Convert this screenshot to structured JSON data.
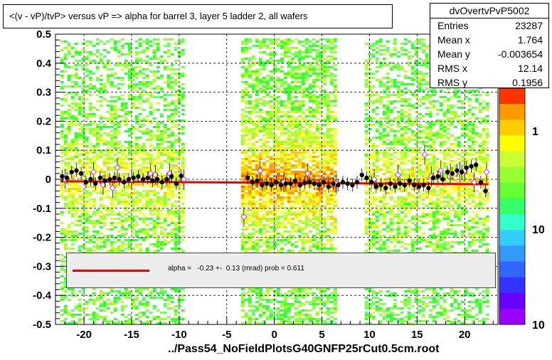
{
  "title": "<(v - vP)/tvP> versus   vP => alpha for barrel 3, layer 5 ladder 2, all wafers",
  "stats": {
    "name": "dvOvertvPvP5002",
    "rows": [
      {
        "key": "Entries",
        "value": "23287"
      },
      {
        "key": "Mean x",
        "value": "1.764"
      },
      {
        "key": "Mean y",
        "value": "-0.003654"
      },
      {
        "key": "RMS x",
        "value": "12.14"
      },
      {
        "key": "RMS y",
        "value": "0.1956"
      }
    ]
  },
  "fit_legend": "alpha =   -0.23 +-  0.13 (mrad) prob = 0.611",
  "filename": "../Pass54_NoFieldPlotsG40GNFP25rCut0.5cm.root",
  "colors": {
    "fit": "#ee0000",
    "profile": "#000000",
    "open_marker": "#cc33cc",
    "legend_bg": "#ececec"
  },
  "chart_data": {
    "type": "heatmap",
    "title": "<(v - vP)/tvP> versus   vP => alpha for barrel 3, layer 5 ladder 2, all wafers",
    "xlim": [
      -23,
      23.5
    ],
    "ylim": [
      -0.5,
      0.5
    ],
    "x_ticks": [
      -20,
      -15,
      -10,
      -5,
      0,
      5,
      10,
      15,
      20
    ],
    "y_ticks": [
      -0.5,
      -0.4,
      -0.3,
      -0.2,
      -0.1,
      0,
      0.1,
      0.2,
      0.3,
      0.4,
      0.5
    ],
    "grid": true,
    "z_scale": "log",
    "z_tick_labels": [
      "1",
      "10",
      "10"
    ],
    "occupied_x_ranges": [
      [
        -22.5,
        -9.5
      ],
      [
        -3.5,
        6.5
      ],
      [
        9.5,
        22.5
      ]
    ],
    "fit": {
      "type": "line",
      "slope": -0.00023,
      "intercept": -0.012
    },
    "profile_filled": {
      "x": [
        -22.3,
        -21.8,
        -21.3,
        -20.8,
        -20.3,
        -19.8,
        -19.3,
        -18.8,
        -18.3,
        -17.8,
        -17.3,
        -16.8,
        -16.3,
        -15.8,
        -15.3,
        -14.8,
        -14.3,
        -13.8,
        -13.3,
        -12.8,
        -12.3,
        -11.8,
        -11.3,
        -10.8,
        -10.3,
        -9.8,
        -2.8,
        -2.3,
        -1.8,
        -1.3,
        -0.8,
        -0.3,
        0.2,
        0.7,
        1.2,
        1.7,
        2.2,
        2.7,
        3.2,
        3.7,
        4.2,
        4.7,
        5.2,
        5.7,
        6.2,
        6.7,
        7.2,
        7.7,
        8.2,
        8.7,
        9.2,
        9.7,
        10.2,
        10.7,
        11.2,
        11.7,
        12.2,
        12.7,
        13.2,
        13.7,
        14.2,
        14.7,
        15.2,
        15.7,
        16.2,
        16.7,
        17.2,
        17.7,
        18.2,
        18.7,
        19.2,
        19.7,
        20.2,
        20.7,
        21.2,
        21.7,
        22.2
      ],
      "y": [
        0.01,
        0.005,
        0.025,
        0.03,
        0.02,
        -0.01,
        0.0,
        -0.015,
        0.005,
        -0.005,
        0.0,
        0.005,
        0.0,
        -0.01,
        0.0,
        0.005,
        0.01,
        0.0,
        0.005,
        -0.005,
        0.0,
        -0.01,
        0.0,
        0.01,
        -0.015,
        0.012,
        0.005,
        -0.01,
        -0.005,
        -0.02,
        -0.015,
        -0.02,
        -0.01,
        -0.02,
        -0.015,
        -0.015,
        -0.005,
        -0.02,
        -0.012,
        -0.01,
        -0.015,
        -0.02,
        -0.01,
        -0.025,
        -0.015,
        -0.02,
        -0.01,
        -0.015,
        -0.02,
        -0.01,
        0.015,
        0.005,
        -0.01,
        -0.025,
        -0.02,
        -0.03,
        -0.015,
        -0.025,
        -0.015,
        -0.02,
        -0.005,
        -0.02,
        -0.025,
        -0.02,
        -0.03,
        0.005,
        0.01,
        0.0,
        0.025,
        0.02,
        0.03,
        0.025,
        0.04,
        0.045,
        0.05,
        -0.01,
        -0.04
      ]
    },
    "profile_open": {
      "x": [
        -22.0,
        -19.0,
        -18.0,
        -17.0,
        -16.5,
        -15.0,
        -13.0,
        -12.5,
        -11.0,
        -9.5,
        -3.2,
        -1.5,
        1.0,
        3.5,
        6.5,
        10.5,
        13.0,
        15.8,
        16.5,
        17.5,
        18.5,
        19.5,
        20.0,
        21.0,
        22.3
      ],
      "y": [
        0.0,
        0.025,
        -0.02,
        -0.03,
        0.04,
        0.0,
        0.02,
        0.015,
        0.02,
        0.0,
        -0.13,
        0.03,
        -0.01,
        0.02,
        -0.015,
        0.0,
        0.015,
        0.085,
        0.01,
        0.03,
        0.02,
        0.025,
        0.03,
        -0.01,
        0.025
      ]
    }
  }
}
